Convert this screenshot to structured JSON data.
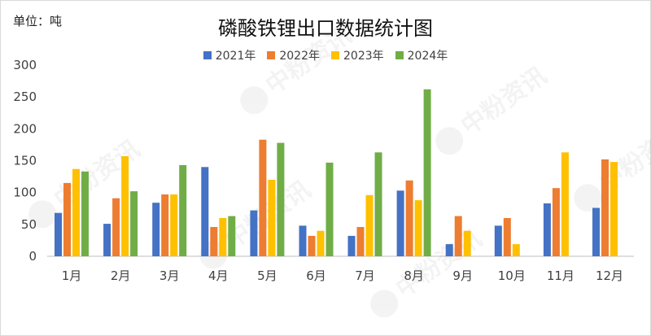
{
  "header": {
    "unit_label": "单位：吨",
    "title": "磷酸铁锂出口数据统计图"
  },
  "watermark": {
    "text": "中粉资讯"
  },
  "chart_data": {
    "type": "bar",
    "title": "磷酸铁锂出口数据统计图",
    "xlabel": "",
    "ylabel": "",
    "ylim": [
      0,
      300
    ],
    "yticks": [
      0,
      50,
      100,
      150,
      200,
      250,
      300
    ],
    "grid": false,
    "legend_position": "top-center",
    "categories": [
      "1月",
      "2月",
      "3月",
      "4月",
      "5月",
      "6月",
      "7月",
      "8月",
      "9月",
      "10月",
      "11月",
      "12月"
    ],
    "series": [
      {
        "name": "2021年",
        "color": "#4472c4",
        "values": [
          68,
          51,
          84,
          140,
          72,
          48,
          32,
          103,
          19,
          48,
          83,
          76
        ]
      },
      {
        "name": "2022年",
        "color": "#ed7d31",
        "values": [
          115,
          91,
          97,
          46,
          183,
          32,
          46,
          119,
          63,
          60,
          107,
          152
        ]
      },
      {
        "name": "2023年",
        "color": "#ffc000",
        "values": [
          137,
          157,
          97,
          60,
          120,
          40,
          96,
          88,
          40,
          19,
          163,
          148
        ]
      },
      {
        "name": "2024年",
        "color": "#70ad47",
        "values": [
          133,
          102,
          143,
          63,
          178,
          147,
          163,
          262,
          null,
          null,
          null,
          null
        ]
      }
    ]
  }
}
